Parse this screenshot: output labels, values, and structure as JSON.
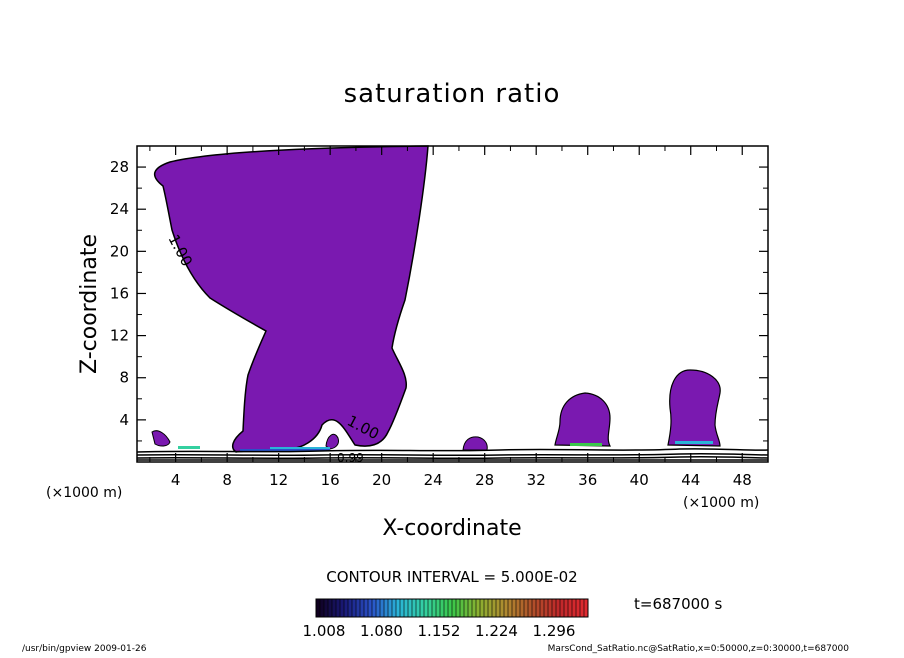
{
  "chart_data": {
    "type": "contour",
    "title": "saturation ratio",
    "xlabel": "X-coordinate",
    "ylabel": "Z-coordinate",
    "x_multiplier": "(×1000 m)",
    "z_multiplier": "(×1000 m)",
    "xlim": [
      1,
      50
    ],
    "ylim": [
      0,
      30
    ],
    "xticks": [
      "4",
      "8",
      "12",
      "16",
      "20",
      "24",
      "28",
      "32",
      "36",
      "40",
      "44",
      "48"
    ],
    "yticks": [
      "4",
      "8",
      "12",
      "16",
      "20",
      "24",
      "28"
    ],
    "contour_labels": [
      "1.00",
      "1.00",
      "0.99"
    ],
    "contour_interval_text": "CONTOUR INTERVAL = 5.000E-02",
    "time_text": "t=687000 s",
    "colorbar": {
      "min": 1.008,
      "max": 1.296,
      "ticks": [
        "1.008",
        "1.080",
        "1.152",
        "1.224",
        "1.296"
      ],
      "colors": [
        "#100020",
        "#1a1a7a",
        "#2a52c8",
        "#2ab4d8",
        "#34d0a0",
        "#3ac84a",
        "#8cb030",
        "#b08a30",
        "#b0502a",
        "#c0282a",
        "#e02a30"
      ]
    },
    "fill_color": "#7a19b0"
  },
  "footer": {
    "left": "/usr/bin/gpview   2009-01-26",
    "right": "MarsCond_SatRatio.nc@SatRatio,x=0:50000,z=0:30000,t=687000"
  }
}
